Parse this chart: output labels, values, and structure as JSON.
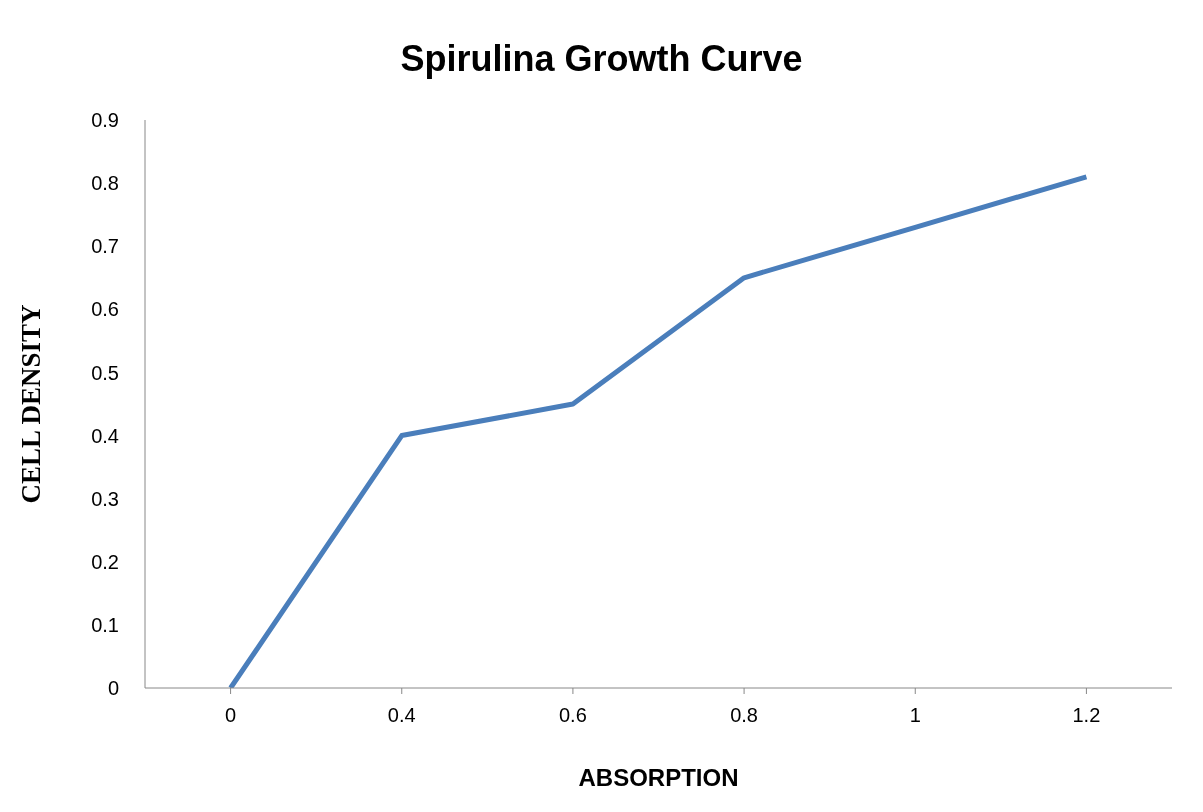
{
  "chart_data": {
    "type": "line",
    "title": "Spirulina Growth Curve",
    "xlabel": "ABSORPTION",
    "ylabel": "CELL DENSITY",
    "categories": [
      "0",
      "0.4",
      "0.6",
      "0.8",
      "1",
      "1.2"
    ],
    "series": [
      {
        "color": "#4a7ebb",
        "values": [
          0,
          0.4,
          0.45,
          0.65,
          0.73,
          0.81
        ]
      }
    ],
    "ylim": [
      0,
      0.9
    ],
    "yticks": [
      0,
      0.1,
      0.2,
      0.3,
      0.4,
      0.5,
      0.6,
      0.7,
      0.8,
      0.9
    ],
    "grid": false,
    "legend": false,
    "marker": "none",
    "line_style": "solid"
  }
}
